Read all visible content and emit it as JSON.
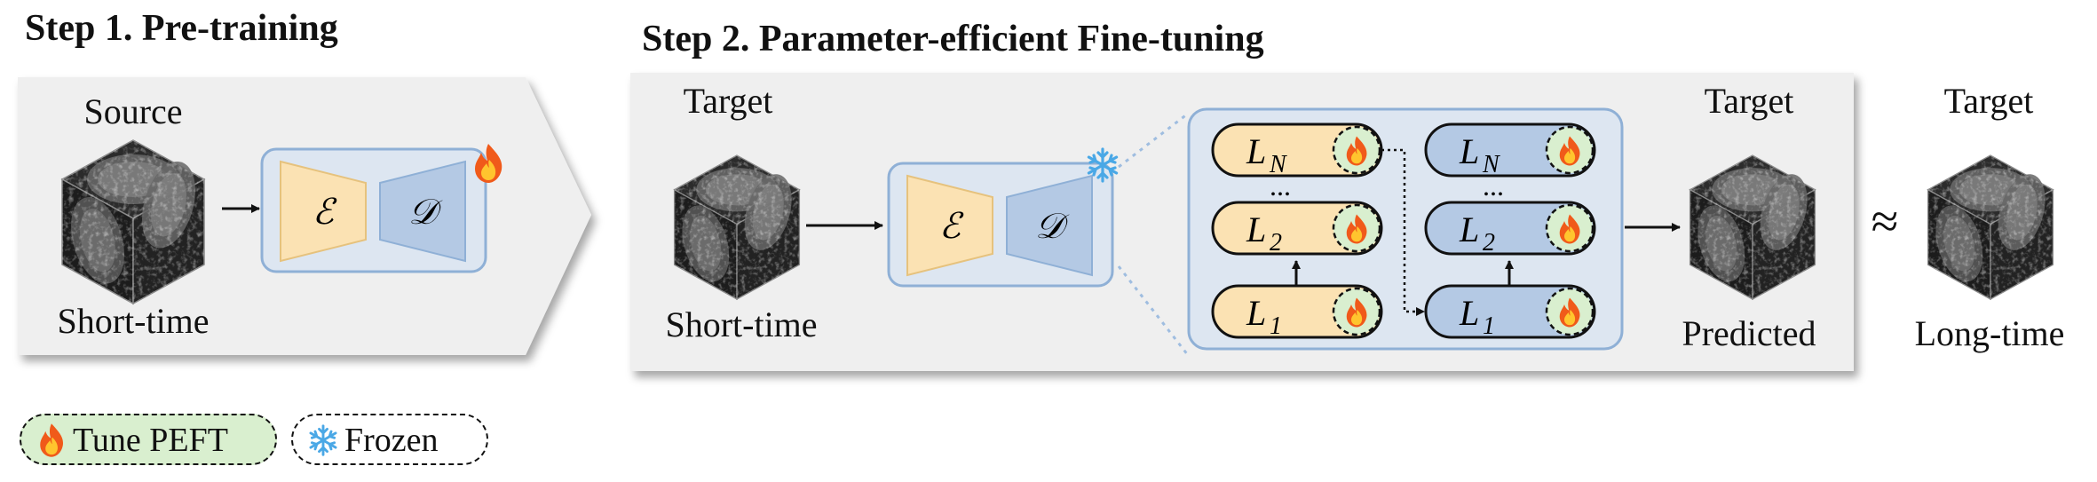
{
  "step1": {
    "heading": "Step 1. Pre-training",
    "source_label": "Source",
    "input_label": "Short-time"
  },
  "step2": {
    "heading": "Step 2. Parameter-efficient  Fine-tuning",
    "input_top": "Target",
    "input_bottom": "Short-time",
    "output_top": "Target",
    "output_bottom": "Predicted"
  },
  "ground_truth": {
    "top": "Target",
    "bottom": "Long-time"
  },
  "approx_symbol": "≈",
  "encoder_symbol": "ℰ",
  "decoder_symbol": "𝒟",
  "layers": {
    "left": [
      {
        "base": "L",
        "sub": "N"
      },
      {
        "ellipsis": "..."
      },
      {
        "base": "L",
        "sub": "2"
      },
      {
        "base": "L",
        "sub": "1"
      }
    ],
    "right": [
      {
        "base": "L",
        "sub": "N"
      },
      {
        "ellipsis": "..."
      },
      {
        "base": "L",
        "sub": "2"
      },
      {
        "base": "L",
        "sub": "1"
      }
    ]
  },
  "legend": {
    "tune_label": "Tune PEFT",
    "frozen_label": "Frozen"
  },
  "colors": {
    "panel_bg": "#efefef",
    "module_bg": "#dde6f1",
    "module_border": "#8fb0d6",
    "encoder_fill": "#fbe2b3",
    "decoder_fill": "#b4c9e4",
    "tune_fill": "#d9efcf",
    "flame_outer": "#f05a1a",
    "flame_inner": "#ffc52e",
    "snow": "#4aa8e6"
  },
  "icons": {
    "tune": "flame-icon",
    "frozen": "snowflake-icon",
    "volume": "brain-volume-cube-icon"
  }
}
